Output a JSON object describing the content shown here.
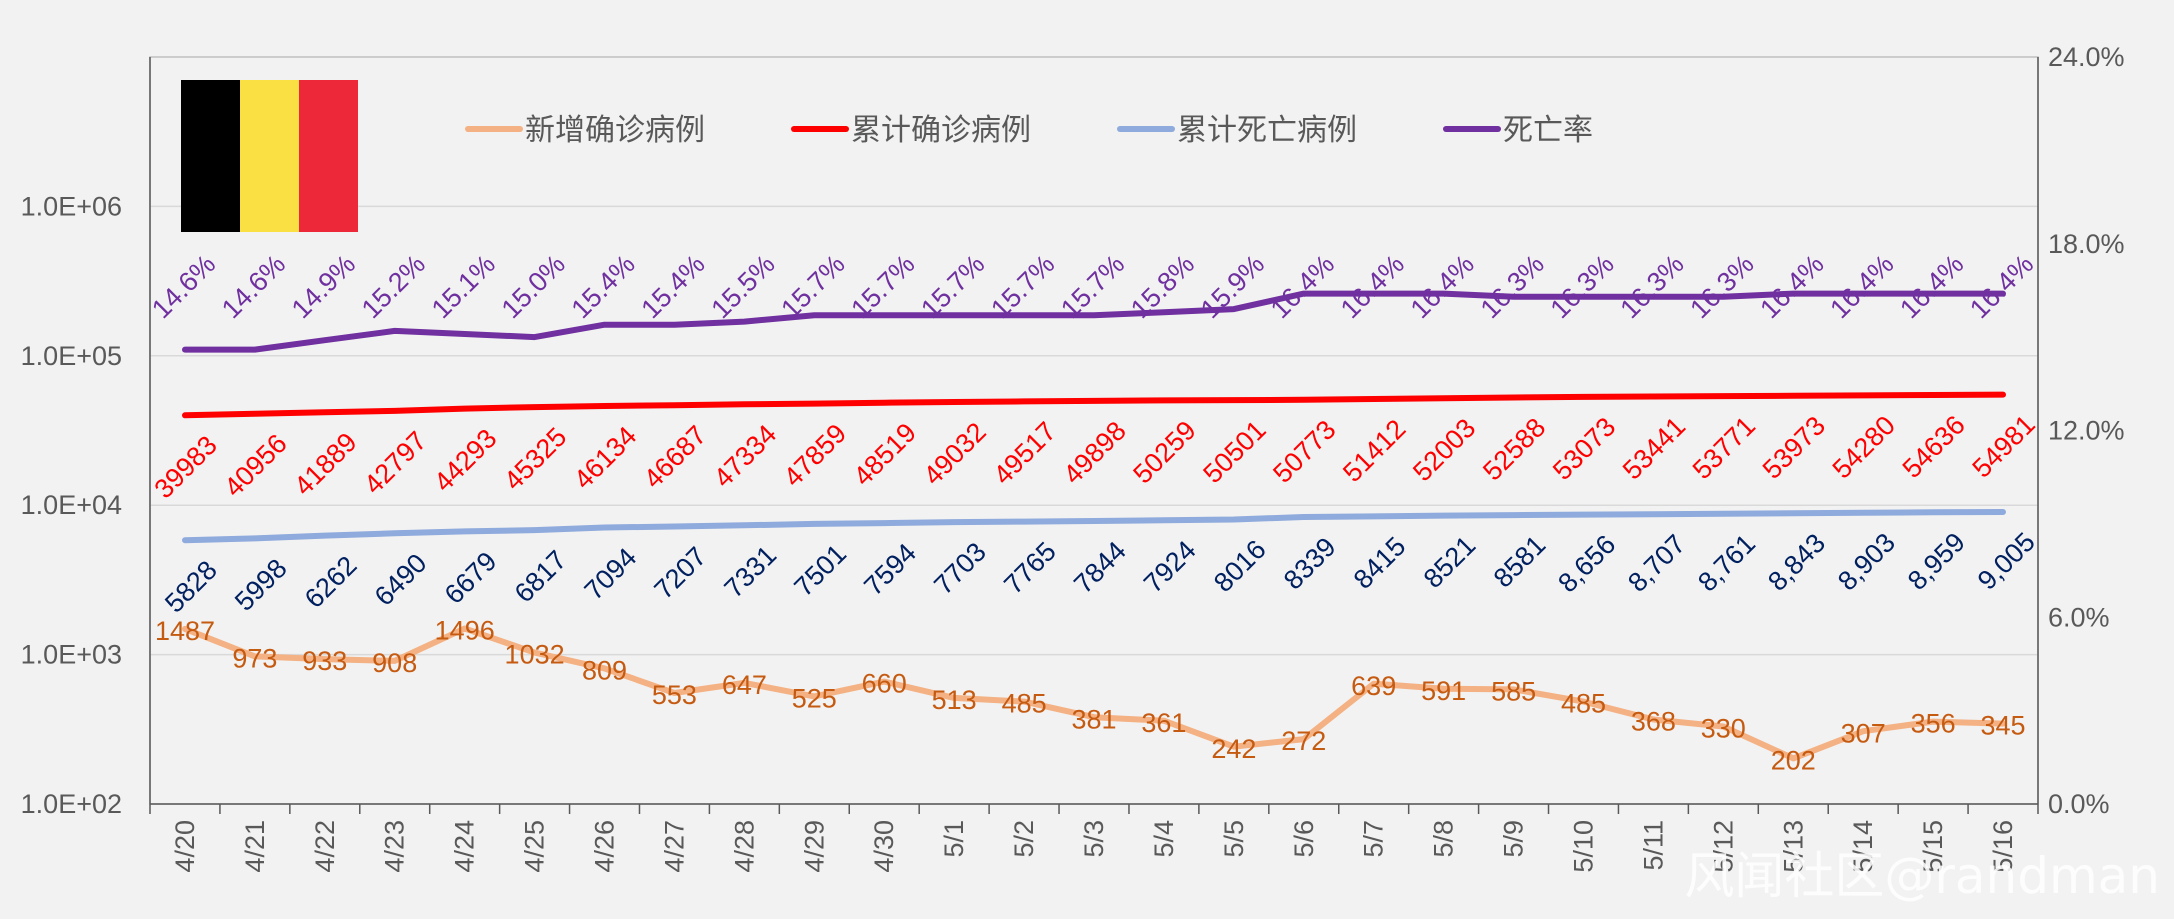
{
  "chart_data": {
    "type": "line",
    "title": "",
    "categories": [
      "4/20",
      "4/21",
      "4/22",
      "4/23",
      "4/24",
      "4/25",
      "4/26",
      "4/27",
      "4/28",
      "4/29",
      "4/30",
      "5/1",
      "5/2",
      "5/3",
      "5/4",
      "5/5",
      "5/6",
      "5/7",
      "5/8",
      "5/9",
      "5/10",
      "5/11",
      "5/12",
      "5/13",
      "5/14",
      "5/15",
      "5/16"
    ],
    "y_axis": {
      "scale": "log",
      "range": [
        100,
        10000000
      ],
      "tick_labels": [
        "1.0E+02",
        "1.0E+03",
        "1.0E+04",
        "1.0E+05",
        "1.0E+06"
      ]
    },
    "y2_axis": {
      "range": [
        0,
        0.24
      ],
      "tick_labels": [
        "0.0%",
        "6.0%",
        "12.0%",
        "18.0%",
        "24.0%"
      ]
    },
    "series": [
      {
        "name": "新增确诊病例",
        "axis": "left",
        "color": "#f4b183",
        "label_color": "#c55a11",
        "values": [
          1487,
          973,
          933,
          908,
          1496,
          1032,
          809,
          553,
          647,
          525,
          660,
          513,
          485,
          381,
          361,
          242,
          272,
          639,
          591,
          585,
          485,
          368,
          330,
          202,
          307,
          356,
          345
        ],
        "labels": [
          "1487",
          "973",
          "933",
          "908",
          "1496",
          "1032",
          "809",
          "553",
          "647",
          "525",
          "660",
          "513",
          "485",
          "381",
          "361",
          "242",
          "272",
          "639",
          "591",
          "585",
          "485",
          "368",
          "330",
          "202",
          "307",
          "356",
          "345"
        ]
      },
      {
        "name": "累计确诊病例",
        "axis": "left",
        "color": "#ff0000",
        "label_color": "#ff0000",
        "values": [
          39983,
          40956,
          41889,
          42797,
          44293,
          45325,
          46134,
          46687,
          47334,
          47859,
          48519,
          49032,
          49517,
          49898,
          50259,
          50501,
          50773,
          51412,
          52003,
          52588,
          53073,
          53441,
          53771,
          53973,
          54280,
          54636,
          54981
        ],
        "labels": [
          "39983",
          "40956",
          "41889",
          "42797",
          "44293",
          "45325",
          "46134",
          "46687",
          "47334",
          "47859",
          "48519",
          "49032",
          "49517",
          "49898",
          "50259",
          "50501",
          "50773",
          "51412",
          "52003",
          "52588",
          "53073",
          "53441",
          "53771",
          "53973",
          "54280",
          "54636",
          "54981"
        ]
      },
      {
        "name": "累计死亡病例",
        "axis": "left",
        "color": "#8faadc",
        "label_color": "#002060",
        "values": [
          5828,
          5998,
          6262,
          6490,
          6679,
          6817,
          7094,
          7207,
          7331,
          7501,
          7594,
          7703,
          7765,
          7844,
          7924,
          8016,
          8339,
          8415,
          8521,
          8581,
          8656,
          8707,
          8761,
          8843,
          8903,
          8959,
          9005
        ],
        "labels": [
          "5828",
          "5998",
          "6262",
          "6490",
          "6679",
          "6817",
          "7094",
          "7207",
          "7331",
          "7501",
          "7594",
          "7703",
          "7765",
          "7844",
          "7924",
          "8016",
          "8339",
          "8415",
          "8521",
          "8581",
          "8,656",
          "8,707",
          "8,761",
          "8,843",
          "8,903",
          "8,959",
          "9,005"
        ]
      },
      {
        "name": "死亡率",
        "axis": "right",
        "color": "#7030a0",
        "label_color": "#7030a0",
        "values": [
          0.146,
          0.146,
          0.149,
          0.152,
          0.151,
          0.15,
          0.154,
          0.154,
          0.155,
          0.157,
          0.157,
          0.157,
          0.157,
          0.157,
          0.158,
          0.159,
          0.164,
          0.164,
          0.164,
          0.163,
          0.163,
          0.163,
          0.163,
          0.164,
          0.164,
          0.164,
          0.164
        ],
        "labels": [
          "14.6%",
          "14.6%",
          "14.9%",
          "15.2%",
          "15.1%",
          "15.0%",
          "15.4%",
          "15.4%",
          "15.5%",
          "15.7%",
          "15.7%",
          "15.7%",
          "15.7%",
          "15.7%",
          "15.8%",
          "15.9%",
          "16.4%",
          "16.4%",
          "16.4%",
          "16.3%",
          "16.3%",
          "16.3%",
          "16.3%",
          "16.4%",
          "16.4%",
          "16.4%",
          "16.4%"
        ]
      }
    ],
    "legend_position": "top",
    "grid": true,
    "flag": {
      "name": "belgium-flag",
      "colors": [
        "#000000",
        "#fae042",
        "#ed2939"
      ]
    },
    "watermark": "风闻社区@randman"
  }
}
